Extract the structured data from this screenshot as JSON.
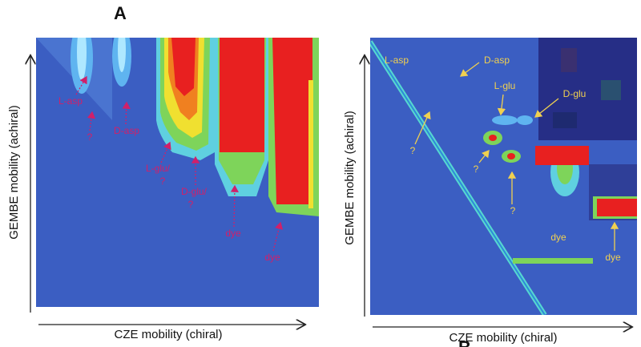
{
  "panels": [
    {
      "label": "A",
      "x_axis_label": "CZE mobility (chiral)",
      "y_axis_label": "GEMBE mobility (achiral)",
      "annotations": [
        "L-asp",
        "?",
        "D-asp",
        "L-glu/",
        "?",
        "D-glu/",
        "?",
        "dye",
        "dye"
      ]
    },
    {
      "label": "B",
      "x_axis_label": "CZE mobility (chiral)",
      "y_axis_label": "GEMBE mobility (achiral)",
      "annotations": [
        "L-asp",
        "D-asp",
        "L-glu",
        "D-glu",
        "?",
        "?",
        "?",
        "dye",
        "dye"
      ]
    }
  ]
}
